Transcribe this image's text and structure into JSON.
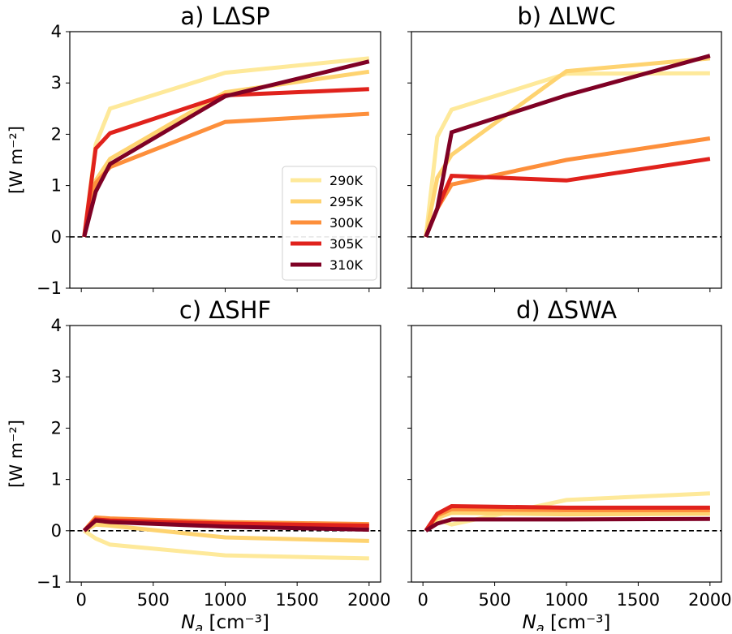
{
  "figure": {
    "ylabel": "[W m⁻²]",
    "xlabel_symbol": "N",
    "xlabel_subscript": "a",
    "xlabel_unit": " [cm⁻³]"
  },
  "legend": {
    "entries": [
      {
        "label": "290K",
        "color": "#fee99a"
      },
      {
        "label": "295K",
        "color": "#fed370"
      },
      {
        "label": "300K",
        "color": "#fd8f3b"
      },
      {
        "label": "305K",
        "color": "#e0221c"
      },
      {
        "label": "310K",
        "color": "#7f0125"
      }
    ]
  },
  "chart_data": [
    {
      "type": "line",
      "title": "a) LΔSP",
      "xlim": [
        -80,
        2080
      ],
      "ylim": [
        -1,
        4
      ],
      "xticks": [
        0,
        500,
        1000,
        1500,
        2000
      ],
      "yticks": [
        -1,
        0,
        1,
        2,
        3,
        4
      ],
      "show_x_ticklabels": false,
      "show_y_ticklabels": true,
      "legend": "lower right",
      "x": [
        20,
        100,
        200,
        1000,
        2000
      ],
      "series": [
        {
          "name": "290K",
          "color": "#fee99a",
          "values": [
            0,
            1.8,
            2.5,
            3.2,
            3.48
          ]
        },
        {
          "name": "295K",
          "color": "#fed370",
          "values": [
            0,
            1.1,
            1.52,
            2.82,
            3.22
          ]
        },
        {
          "name": "300K",
          "color": "#fd8f3b",
          "values": [
            0,
            1.05,
            1.36,
            2.24,
            2.4
          ]
        },
        {
          "name": "305K",
          "color": "#e0221c",
          "values": [
            0,
            1.72,
            2.02,
            2.76,
            2.88
          ]
        },
        {
          "name": "310K",
          "color": "#7f0125",
          "values": [
            0,
            0.88,
            1.42,
            2.74,
            3.42
          ]
        }
      ]
    },
    {
      "type": "line",
      "title": "b) ΔLWC",
      "xlim": [
        -80,
        2080
      ],
      "ylim": [
        -1,
        4
      ],
      "xticks": [
        0,
        500,
        1000,
        1500,
        2000
      ],
      "yticks": [
        -1,
        0,
        1,
        2,
        3,
        4
      ],
      "show_x_ticklabels": false,
      "show_y_ticklabels": false,
      "x": [
        20,
        100,
        200,
        1000,
        2000
      ],
      "series": [
        {
          "name": "290K",
          "color": "#fee99a",
          "values": [
            0,
            1.95,
            2.48,
            3.18,
            3.19
          ]
        },
        {
          "name": "295K",
          "color": "#fed370",
          "values": [
            0,
            1.15,
            1.6,
            3.23,
            3.48
          ]
        },
        {
          "name": "300K",
          "color": "#fd8f3b",
          "values": [
            0,
            0.55,
            1.02,
            1.5,
            1.92
          ]
        },
        {
          "name": "305K",
          "color": "#e0221c",
          "values": [
            0,
            0.55,
            1.19,
            1.1,
            1.52
          ]
        },
        {
          "name": "310K",
          "color": "#7f0125",
          "values": [
            0,
            0.55,
            2.04,
            2.76,
            3.53
          ]
        }
      ]
    },
    {
      "type": "line",
      "title": "c) ΔSHF",
      "xlim": [
        -80,
        2080
      ],
      "ylim": [
        -1,
        4
      ],
      "xticks": [
        0,
        500,
        1000,
        1500,
        2000
      ],
      "yticks": [
        -1,
        0,
        1,
        2,
        3,
        4
      ],
      "show_x_ticklabels": true,
      "show_y_ticklabels": true,
      "x": [
        20,
        100,
        200,
        1000,
        2000
      ],
      "series": [
        {
          "name": "290K",
          "color": "#fee99a",
          "values": [
            0,
            -0.15,
            -0.27,
            -0.48,
            -0.54
          ]
        },
        {
          "name": "295K",
          "color": "#fed370",
          "values": [
            0,
            0.12,
            0.1,
            -0.13,
            -0.2
          ]
        },
        {
          "name": "300K",
          "color": "#fd8f3b",
          "values": [
            0,
            0.26,
            0.24,
            0.17,
            0.13
          ]
        },
        {
          "name": "305K",
          "color": "#e0221c",
          "values": [
            0,
            0.22,
            0.2,
            0.14,
            0.1
          ]
        },
        {
          "name": "310K",
          "color": "#7f0125",
          "values": [
            0,
            0.2,
            0.17,
            0.08,
            0.02
          ]
        }
      ]
    },
    {
      "type": "line",
      "title": "d) ΔSWA",
      "xlim": [
        -80,
        2080
      ],
      "ylim": [
        -1,
        4
      ],
      "xticks": [
        0,
        500,
        1000,
        1500,
        2000
      ],
      "yticks": [
        -1,
        0,
        1,
        2,
        3,
        4
      ],
      "show_x_ticklabels": true,
      "show_y_ticklabels": false,
      "x": [
        20,
        100,
        200,
        1000,
        2000
      ],
      "series": [
        {
          "name": "290K",
          "color": "#fee99a",
          "values": [
            0,
            0.22,
            0.12,
            0.6,
            0.73
          ]
        },
        {
          "name": "295K",
          "color": "#fed370",
          "values": [
            0,
            0.25,
            0.35,
            0.32,
            0.33
          ]
        },
        {
          "name": "300K",
          "color": "#fd8f3b",
          "values": [
            0,
            0.3,
            0.42,
            0.4,
            0.4
          ]
        },
        {
          "name": "305K",
          "color": "#e0221c",
          "values": [
            0,
            0.33,
            0.48,
            0.45,
            0.45
          ]
        },
        {
          "name": "310K",
          "color": "#7f0125",
          "values": [
            0,
            0.14,
            0.22,
            0.22,
            0.23
          ]
        }
      ]
    }
  ]
}
